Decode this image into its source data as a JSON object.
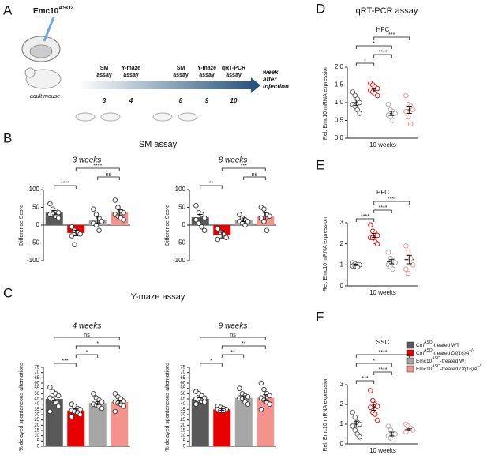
{
  "panels": [
    "A",
    "B",
    "C",
    "D",
    "E",
    "F"
  ],
  "diagram": {
    "drug": {
      "name": "Emc10",
      "sup": "ASO2"
    },
    "animal": "adult mouse",
    "events": [
      {
        "lines": [
          "SM",
          "assay"
        ],
        "week": 3
      },
      {
        "lines": [
          "Y-maze",
          "assay"
        ],
        "week": 4
      },
      {
        "lines": [
          "SM",
          "assay"
        ],
        "week": 8
      },
      {
        "lines": [
          "Y-maze",
          "assay"
        ],
        "week": 9
      },
      {
        "lines": [
          "qRT-PCR",
          "assay"
        ],
        "week": 10
      }
    ],
    "axis_label": [
      "week",
      "after",
      "injection"
    ]
  },
  "legend": {
    "entries": [
      {
        "color": "#595959",
        "parts": [
          {
            "text": "Ctrl"
          },
          {
            "text": "ASO",
            "style": "sup"
          },
          {
            "text": "-treated WT"
          }
        ]
      },
      {
        "color": "#e60000",
        "parts": [
          {
            "text": "Ctrl"
          },
          {
            "text": "ASO",
            "style": "sup"
          },
          {
            "text": "-treated "
          },
          {
            "text": "Df(16)A",
            "style": "italic"
          },
          {
            "text": "+/-",
            "style": "sup"
          }
        ]
      },
      {
        "color": "#a6a6a6",
        "parts": [
          {
            "text": "Emc10"
          },
          {
            "text": "ASO",
            "style": "sup"
          },
          {
            "text": "-treated WT"
          }
        ]
      },
      {
        "color": "#f4928e",
        "parts": [
          {
            "text": "Emc10"
          },
          {
            "text": "ASO",
            "style": "sup"
          },
          {
            "text": "-treated "
          },
          {
            "text": "Df(16)A",
            "style": "italic"
          },
          {
            "text": "+/-",
            "style": "sup"
          }
        ]
      }
    ]
  },
  "chart_data": [
    {
      "type": "bar",
      "section": "SM assay",
      "title": "3 weeks",
      "ylabel": "Difference Score",
      "ylim": [
        -100,
        100
      ],
      "yticks": [
        -100,
        -50,
        0,
        50,
        100
      ],
      "series": [
        {
          "color": "#595959",
          "mean": 35,
          "error": 6,
          "points": [
            60,
            45,
            40,
            35,
            30,
            30,
            25,
            20
          ]
        },
        {
          "color": "#e60000",
          "mean": -22,
          "error": 8,
          "points": [
            -5,
            -15,
            -20,
            -25,
            -30,
            -55
          ]
        },
        {
          "color": "#a6a6a6",
          "mean": 15,
          "error": 9,
          "points": [
            45,
            30,
            20,
            10,
            5,
            0,
            -15
          ]
        },
        {
          "color": "#f4928e",
          "mean": 35,
          "error": 8,
          "points": [
            70,
            50,
            40,
            35,
            30,
            25,
            20,
            15
          ]
        }
      ],
      "comparisons": [
        {
          "pair": [
            0,
            1
          ],
          "label": "****"
        },
        {
          "pair": [
            2,
            3
          ],
          "label": "ns"
        },
        {
          "pair": [
            1,
            3
          ],
          "label": "****"
        }
      ]
    },
    {
      "type": "bar",
      "title": "8 weeks",
      "ylabel": "Difference Score",
      "ylim": [
        -100,
        100
      ],
      "yticks": [
        -100,
        -50,
        0,
        50,
        100
      ],
      "series": [
        {
          "color": "#595959",
          "mean": 22,
          "error": 8,
          "points": [
            55,
            35,
            30,
            20,
            15,
            5,
            -5,
            -15
          ]
        },
        {
          "color": "#e60000",
          "mean": -28,
          "error": 8,
          "points": [
            -10,
            -20,
            -25,
            -35,
            -40
          ]
        },
        {
          "color": "#a6a6a6",
          "mean": 15,
          "error": 5,
          "points": [
            30,
            20,
            15,
            10,
            10,
            5,
            0
          ]
        },
        {
          "color": "#f4928e",
          "mean": 25,
          "error": 10,
          "points": [
            50,
            45,
            30,
            25,
            20,
            10,
            -15
          ]
        }
      ],
      "comparisons": [
        {
          "pair": [
            0,
            1
          ],
          "label": "**"
        },
        {
          "pair": [
            2,
            3
          ],
          "label": "ns"
        },
        {
          "pair": [
            1,
            3
          ],
          "label": "***"
        }
      ]
    },
    {
      "type": "bar",
      "section": "Y-maze assay",
      "title": "4 weeks",
      "ylabel": "% delayed spontaneous alternations",
      "ylim": [
        0,
        75
      ],
      "yticks": [
        0,
        5,
        10,
        15,
        20,
        25,
        30,
        35,
        40,
        45,
        50,
        55,
        60,
        65,
        70,
        75
      ],
      "series": [
        {
          "color": "#595959",
          "mean": 45,
          "error": 2,
          "points": [
            56,
            52,
            50,
            48,
            46,
            44,
            42,
            38,
            33
          ]
        },
        {
          "color": "#e60000",
          "mean": 34,
          "error": 1.5,
          "points": [
            40,
            38,
            36,
            35,
            34,
            33,
            32,
            30,
            28
          ]
        },
        {
          "color": "#a6a6a6",
          "mean": 41,
          "error": 1.5,
          "points": [
            50,
            46,
            44,
            42,
            40,
            39,
            38,
            36
          ]
        },
        {
          "color": "#f4928e",
          "mean": 42,
          "error": 1.5,
          "points": [
            50,
            47,
            45,
            43,
            42,
            41,
            40,
            38,
            33
          ]
        }
      ],
      "comparisons": [
        {
          "pair": [
            0,
            1
          ],
          "label": "***"
        },
        {
          "pair": [
            1,
            2
          ],
          "label": "*"
        },
        {
          "pair": [
            1,
            3
          ],
          "label": "*"
        },
        {
          "pair": [
            0,
            3
          ],
          "label": "ns"
        }
      ]
    },
    {
      "type": "bar",
      "title": "9 weeks",
      "ylabel": "% delayed spontaneous alternations",
      "ylim": [
        0,
        75
      ],
      "yticks": [
        0,
        5,
        10,
        15,
        20,
        25,
        30,
        35,
        40,
        45,
        50,
        55,
        60,
        65,
        70,
        75
      ],
      "series": [
        {
          "color": "#595959",
          "mean": 45,
          "error": 1.5,
          "points": [
            52,
            50,
            48,
            46,
            45,
            44,
            43,
            42,
            40
          ]
        },
        {
          "color": "#e60000",
          "mean": 35,
          "error": 0.8,
          "points": [
            38,
            37,
            36,
            35,
            35,
            34,
            34
          ]
        },
        {
          "color": "#a6a6a6",
          "mean": 46,
          "error": 2,
          "points": [
            55,
            50,
            48,
            47,
            46,
            45,
            42,
            40
          ]
        },
        {
          "color": "#f4928e",
          "mean": 46,
          "error": 3,
          "points": [
            60,
            54,
            50,
            48,
            46,
            44,
            42,
            40,
            35
          ]
        }
      ],
      "comparisons": [
        {
          "pair": [
            0,
            1
          ],
          "label": "*"
        },
        {
          "pair": [
            1,
            2
          ],
          "label": "**"
        },
        {
          "pair": [
            1,
            3
          ],
          "label": "**"
        },
        {
          "pair": [
            0,
            3
          ],
          "label": "ns"
        }
      ]
    },
    {
      "type": "dot",
      "section": "qRT-PCR assay",
      "title": "HPC",
      "ylabel": "Rel. Emc10 mRNA expression",
      "xlabel": "10 weeks",
      "ylim": [
        0,
        2
      ],
      "yticks": [
        {
          "value": 0,
          "label": "0.0"
        },
        0.5,
        {
          "value": 1,
          "label": "1.0"
        },
        1.5,
        {
          "value": 2,
          "label": "2.0"
        }
      ],
      "series": [
        {
          "color": "#595959",
          "mean": 1.0,
          "error": 0.08,
          "points": [
            1.3,
            1.2,
            1.1,
            1.0,
            0.95,
            0.9,
            0.8,
            0.7
          ]
        },
        {
          "color": "#e60000",
          "mean": 1.35,
          "error": 0.05,
          "points": [
            1.55,
            1.5,
            1.45,
            1.4,
            1.35,
            1.3,
            1.25,
            1.2
          ]
        },
        {
          "color": "#a6a6a6",
          "mean": 0.7,
          "error": 0.06,
          "points": [
            0.95,
            0.8,
            0.75,
            0.7,
            0.65,
            0.6,
            0.5
          ]
        },
        {
          "color": "#f4928e",
          "mean": 0.8,
          "error": 0.1,
          "points": [
            1.2,
            0.95,
            0.9,
            0.8,
            0.75,
            0.6,
            0.4
          ]
        }
      ],
      "comparisons": [
        {
          "pair": [
            0,
            1
          ],
          "label": "*"
        },
        {
          "pair": [
            1,
            2
          ],
          "label": "****"
        },
        {
          "pair": [
            0,
            2
          ],
          "label": "*"
        },
        {
          "pair": [
            1,
            3
          ],
          "label": "***"
        }
      ]
    },
    {
      "type": "dot",
      "title": "PFC",
      "ylabel": "Rel. Emc10 mRNA expression",
      "xlabel": "10 weeks",
      "ylim": [
        0,
        3
      ],
      "yticks": [
        0,
        1,
        2,
        3
      ],
      "series": [
        {
          "color": "#595959",
          "mean": 1.0,
          "error": 0.03,
          "points": [
            1.1,
            1.05,
            1.0,
            1.0,
            0.95,
            0.95,
            0.9
          ]
        },
        {
          "color": "#e60000",
          "mean": 2.4,
          "error": 0.1,
          "points": [
            2.9,
            2.6,
            2.5,
            2.4,
            2.3,
            2.3,
            2.1,
            2.0
          ]
        },
        {
          "color": "#a6a6a6",
          "mean": 1.15,
          "error": 0.1,
          "points": [
            1.6,
            1.3,
            1.2,
            1.1,
            1.0,
            0.9,
            0.8
          ]
        },
        {
          "color": "#f4928e",
          "mean": 1.25,
          "error": 0.2,
          "points": [
            1.9,
            1.6,
            1.3,
            1.0,
            0.8,
            0.6
          ]
        }
      ],
      "comparisons": [
        {
          "pair": [
            0,
            1
          ],
          "label": "****"
        },
        {
          "pair": [
            1,
            2
          ],
          "label": "****"
        },
        {
          "pair": [
            1,
            3
          ],
          "label": "****"
        }
      ]
    },
    {
      "type": "dot",
      "title": "SSC",
      "ylabel": "Rel. Emc10 mRNA expression",
      "xlabel": "10 weeks",
      "ylim": [
        0,
        3
      ],
      "yticks": [
        0,
        1,
        2,
        3
      ],
      "series": [
        {
          "color": "#595959",
          "mean": 1.0,
          "error": 0.15,
          "points": [
            1.6,
            1.35,
            1.1,
            1.0,
            0.9,
            0.7,
            0.5,
            0.35
          ]
        },
        {
          "color": "#e60000",
          "mean": 1.85,
          "error": 0.15,
          "points": [
            2.7,
            2.2,
            2.0,
            1.9,
            1.85,
            1.6,
            1.5,
            1.2
          ]
        },
        {
          "color": "#a6a6a6",
          "mean": 0.5,
          "error": 0.1,
          "points": [
            0.9,
            0.7,
            0.55,
            0.5,
            0.4,
            0.3,
            0.2
          ]
        },
        {
          "color": "#f4928e",
          "mean": 0.72,
          "error": 0.05,
          "points": [
            1.0,
            0.9,
            0.8,
            0.7,
            0.6
          ]
        }
      ],
      "comparisons": [
        {
          "pair": [
            0,
            1
          ],
          "label": "***"
        },
        {
          "pair": [
            1,
            2
          ],
          "label": "****"
        },
        {
          "pair": [
            0,
            2
          ],
          "label": "*"
        },
        {
          "pair": [
            0,
            3
          ],
          "label": "****"
        }
      ]
    }
  ]
}
